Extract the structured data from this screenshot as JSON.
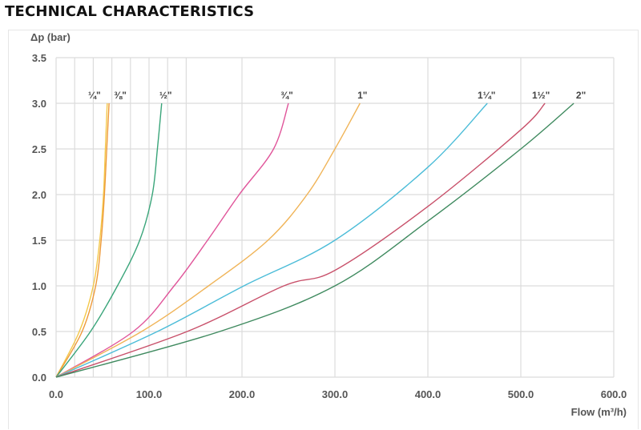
{
  "page_title": "TECHNICAL CHARACTERISTICS",
  "chart_data": {
    "type": "line",
    "title": "",
    "xlabel": "Flow (m³/h)",
    "ylabel": "Δp (bar)",
    "xlim": [
      0,
      600
    ],
    "ylim": [
      0,
      3.5
    ],
    "x_ticks": [
      "0.0",
      "100.0",
      "200.0",
      "300.0",
      "400.0",
      "500.0",
      "600.0"
    ],
    "x_tick_values": [
      0,
      100,
      200,
      300,
      400,
      500,
      600
    ],
    "x_grid_values": [
      0,
      20,
      40,
      60,
      80,
      100,
      120,
      140,
      200,
      300,
      400,
      500,
      600
    ],
    "y_ticks": [
      "0.0",
      "0.5",
      "1.0",
      "1.5",
      "2.0",
      "2.5",
      "3.0",
      "3.5"
    ],
    "y_tick_values": [
      0,
      0.5,
      1,
      1.5,
      2,
      2.5,
      3,
      3.5
    ],
    "grid": true,
    "series": [
      {
        "name": "¼\"",
        "color": "#f4c84a",
        "x": [
          0,
          25,
          40,
          47,
          51,
          53,
          55
        ],
        "y": [
          0,
          0.5,
          1.0,
          1.5,
          2.0,
          2.5,
          3.0
        ]
      },
      {
        "name": "⅜\"",
        "color": "#ee9a3a",
        "x": [
          0,
          28,
          42.6,
          48.5,
          52,
          54.5,
          57
        ],
        "y": [
          0,
          0.5,
          1.0,
          1.5,
          2.0,
          2.5,
          3.0
        ]
      },
      {
        "name": "½\"",
        "color": "#3aa57a",
        "x": [
          0,
          37,
          66,
          90,
          103.5,
          109,
          113.6
        ],
        "y": [
          0,
          0.5,
          1.0,
          1.5,
          2.0,
          2.5,
          3.0
        ]
      },
      {
        "name": "¾\"",
        "color": "#e0559a",
        "x": [
          0,
          83,
          127,
          163,
          197,
          234,
          250
        ],
        "y": [
          0,
          0.5,
          1.0,
          1.5,
          2.0,
          2.5,
          3.0
        ]
      },
      {
        "name": "1\"",
        "color": "#f0b458",
        "x": [
          0,
          92,
          164,
          228,
          270,
          300,
          327
        ],
        "y": [
          0,
          0.5,
          1.0,
          1.5,
          2.0,
          2.5,
          3.0
        ]
      },
      {
        "name": "1¼\"",
        "color": "#4bbcd8",
        "x": [
          0,
          109,
          202,
          300,
          400,
          464
        ],
        "y": [
          0,
          0.5,
          1.0,
          1.5,
          2.3,
          3.0
        ]
      },
      {
        "name": "1½\"",
        "color": "#c8506a",
        "x": [
          0,
          141,
          245,
          300,
          400,
          500,
          526
        ],
        "y": [
          0,
          0.5,
          1.0,
          1.17,
          1.87,
          2.71,
          3.0
        ]
      },
      {
        "name": "2\"",
        "color": "#3f8a5f",
        "x": [
          0,
          176,
          300,
          400,
          500,
          557
        ],
        "y": [
          0,
          0.5,
          1.0,
          1.71,
          2.5,
          3.0
        ]
      }
    ]
  }
}
